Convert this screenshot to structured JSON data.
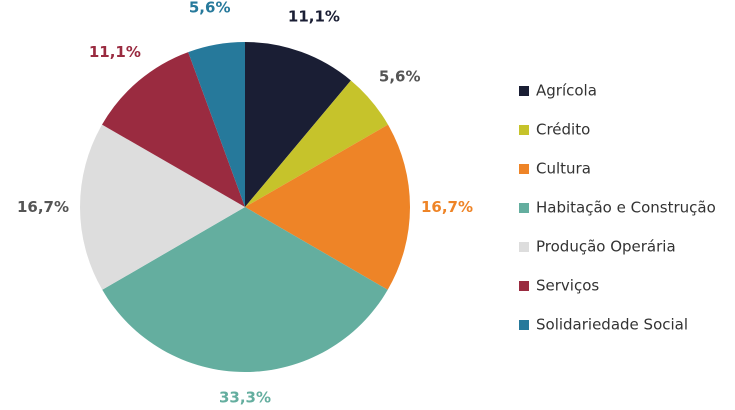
{
  "chart_data": {
    "type": "pie",
    "categories": [
      "Agrícola",
      "Crédito",
      "Cultura",
      "Habitação e Construção",
      "Produção Operária",
      "Serviços",
      "Solidariedade Social"
    ],
    "values": [
      11.1,
      5.6,
      16.7,
      33.3,
      16.7,
      11.1,
      5.6
    ],
    "value_labels": [
      "11,1%",
      "5,6%",
      "16,7%",
      "33,3%",
      "16,7%",
      "11,1%",
      "5,6%"
    ],
    "colors": [
      "#1a1e34",
      "#c6c32b",
      "#ee8427",
      "#64ae9f",
      "#dddddd",
      "#9a2b40",
      "#26799b"
    ],
    "label_colors": [
      "#1a1e34",
      "#555555",
      "#ee8427",
      "#64ae9f",
      "#555555",
      "#9a2b40",
      "#26799b"
    ],
    "legend": "right"
  }
}
